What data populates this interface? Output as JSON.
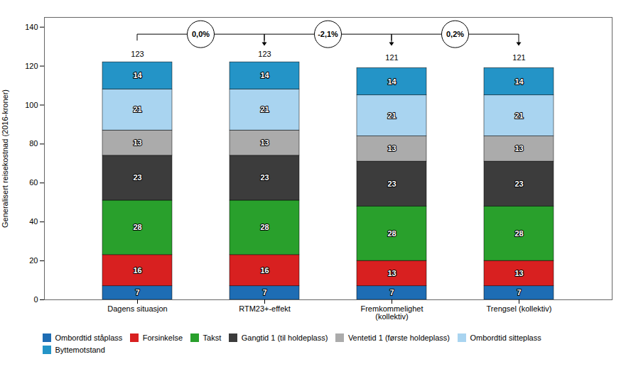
{
  "chart_data": {
    "type": "bar",
    "stacked": true,
    "categories": [
      "Dagens situasjon",
      "RTM23+-effekt",
      "Fremkommelighet\n(kollektiv)",
      "Trengsel (kollektiv)"
    ],
    "series": [
      {
        "name": "Ombordtid ståplass",
        "color": "#1E6DB4",
        "values": [
          7,
          7,
          7,
          7
        ]
      },
      {
        "name": "Forsinkelse",
        "color": "#D82020",
        "values": [
          16,
          16,
          13,
          13
        ]
      },
      {
        "name": "Takst",
        "color": "#29A02C",
        "values": [
          28,
          28,
          28,
          28
        ]
      },
      {
        "name": "Gangtid 1 (til holdeplass)",
        "color": "#3C3C3C",
        "values": [
          23,
          23,
          23,
          23
        ]
      },
      {
        "name": "Ventetid 1 (første holdeplass)",
        "color": "#ABABAB",
        "values": [
          13,
          13,
          13,
          13
        ]
      },
      {
        "name": "Ombordtid sitteplass",
        "color": "#A9D4F0",
        "values": [
          21,
          21,
          21,
          21
        ]
      },
      {
        "name": "Byttemotstand",
        "color": "#2494C7",
        "values": [
          14,
          14,
          14,
          14
        ]
      }
    ],
    "totals": [
      123,
      123,
      121,
      121
    ],
    "annotations": [
      "0,0%",
      "-2,1%",
      "0,2%"
    ],
    "ylabel": "Generalisert reisekostnad (2016-kroner)",
    "ylim": [
      0,
      145
    ],
    "yticks": [
      0,
      20,
      40,
      60,
      80,
      100,
      120,
      140
    ],
    "data_labels": true,
    "grid": false,
    "legend": "bottom"
  }
}
